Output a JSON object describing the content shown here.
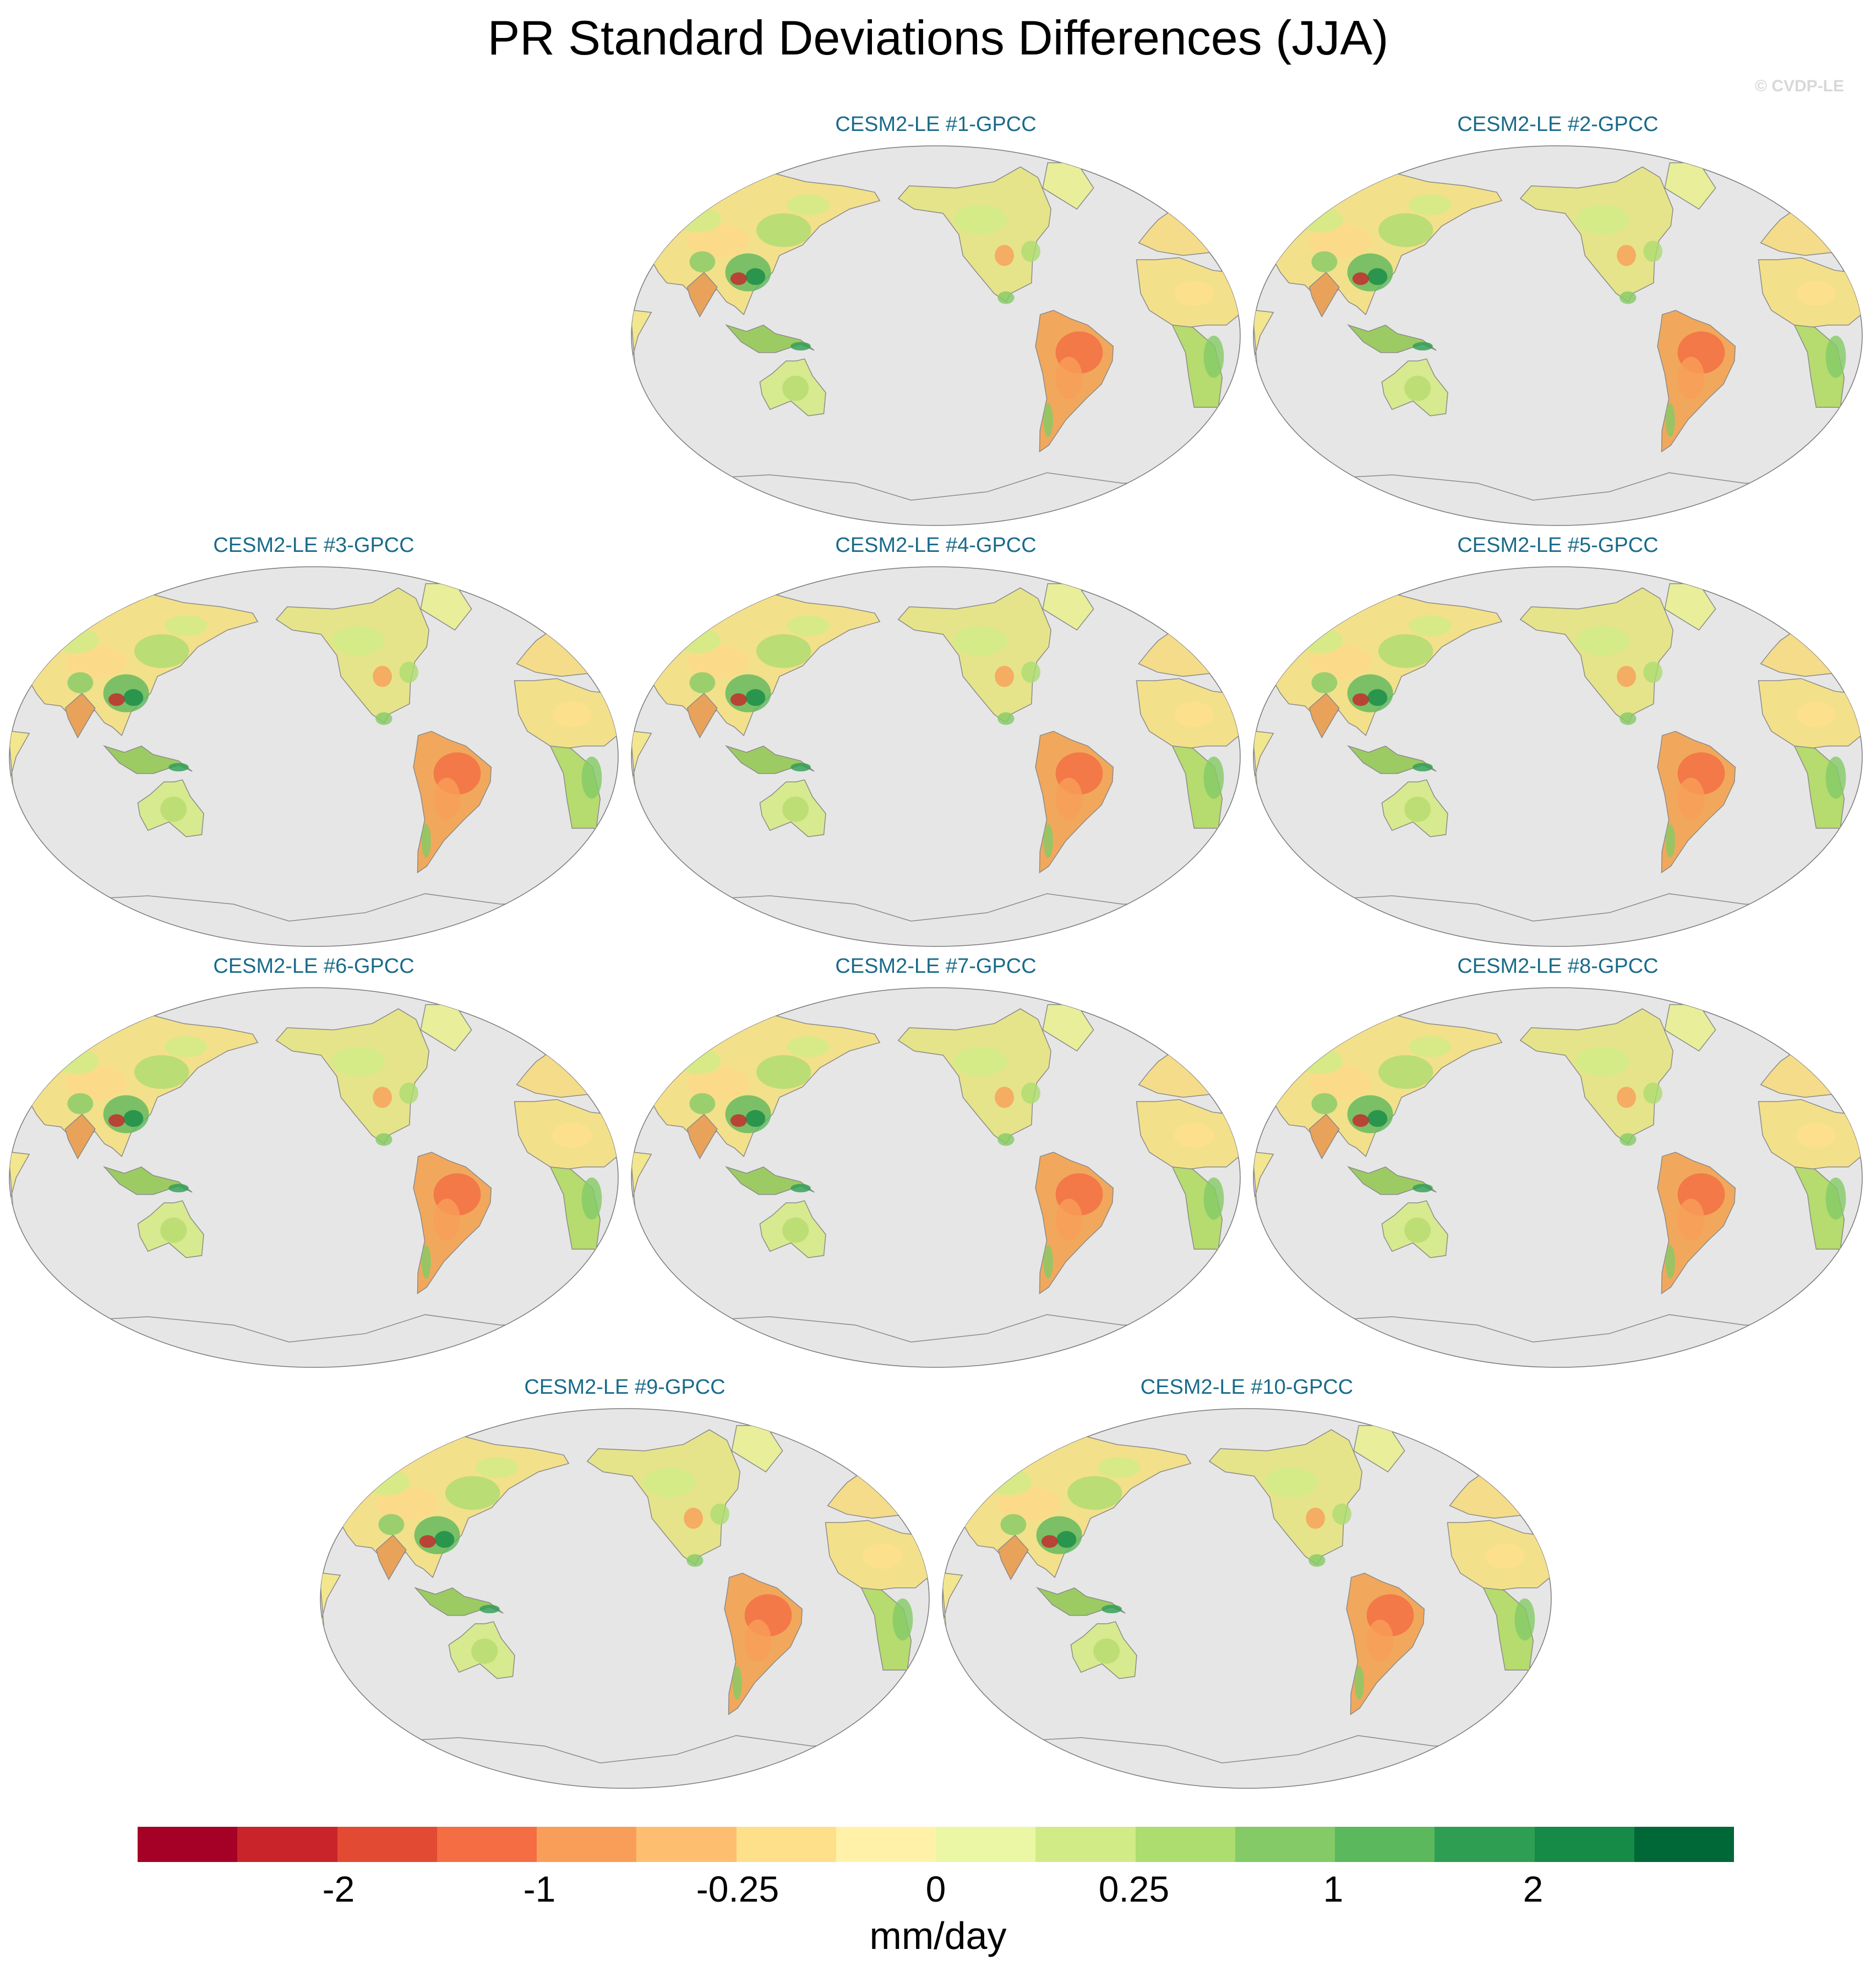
{
  "title": "PR Standard Deviations Differences (JJA)",
  "watermark": "© CVDP-LE",
  "map": {
    "projection": "Robinson, Pacific-centered",
    "ocean_color": "#e6e6e6",
    "coast_color": "#8a8a8a",
    "panels": [
      {
        "label": "CESM2-LE #1-GPCC"
      },
      {
        "label": "CESM2-LE #2-GPCC"
      },
      {
        "label": "CESM2-LE #3-GPCC"
      },
      {
        "label": "CESM2-LE #4-GPCC"
      },
      {
        "label": "CESM2-LE #5-GPCC"
      },
      {
        "label": "CESM2-LE #6-GPCC"
      },
      {
        "label": "CESM2-LE #7-GPCC"
      },
      {
        "label": "CESM2-LE #8-GPCC"
      },
      {
        "label": "CESM2-LE #9-GPCC"
      },
      {
        "label": "CESM2-LE #10-GPCC"
      }
    ]
  },
  "colorbar": {
    "units": "mm/day",
    "colors": [
      "#a50026",
      "#c8242a",
      "#e24a33",
      "#f46d43",
      "#f99e59",
      "#fdbf6f",
      "#fee08b",
      "#fff2a8",
      "#ecf7a6",
      "#d1ec86",
      "#addc6f",
      "#84ca66",
      "#5cb85c",
      "#2e9e52",
      "#168a47",
      "#006837"
    ],
    "tick_labels": [
      "-2",
      "-1",
      "-0.25",
      "0",
      "0.25",
      "1",
      "2"
    ]
  }
}
